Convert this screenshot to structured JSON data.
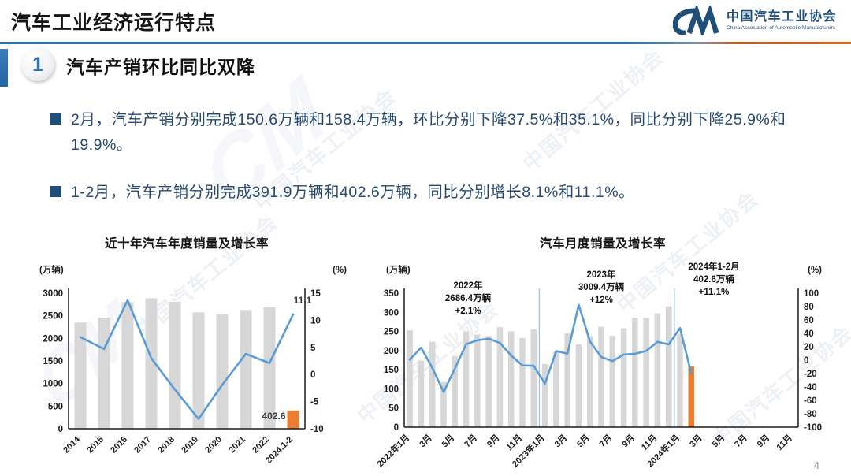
{
  "slide": {
    "title": "汽车工业经济运行特点",
    "page_number": "4",
    "watermark_text": "中国汽车工业协会",
    "watermark_monogram": "CM"
  },
  "logo": {
    "monogram": "CM",
    "name_cn": "中国汽车工业协会",
    "name_en": "China Association of Automobile Manufacturers"
  },
  "section": {
    "number": "1",
    "title": "汽车产销环比同比双降"
  },
  "bullets": [
    "2月，汽车产销分别完成150.6万辆和158.4万辆，环比分别下降37.5%和35.1%，同比分别下降25.9%和19.9%。",
    "1-2月，汽车产销分别完成391.9万辆和402.6万辆，同比分别增长8.1%和11.1%。"
  ],
  "colors": {
    "accent_blue": "#2E75B6",
    "navy_text": "#1F4E79",
    "bar_gray": "#D7D7D7",
    "bar_orange": "#ED7D31",
    "line_blue": "#5B9BD5",
    "separator_blue": "#9DC3E6",
    "divider_orange": "#E2660E"
  },
  "chart_data": [
    {
      "id": "annual",
      "type": "bar+line",
      "title": "近十年汽车年度销量及增长率",
      "left_axis_label": "(万辆)",
      "right_axis_label": "(%)",
      "left_axis": {
        "min": 0,
        "max": 3000,
        "step": 500
      },
      "right_axis": {
        "min": -10,
        "max": 15,
        "step": 5
      },
      "categories": [
        "2014",
        "2015",
        "2016",
        "2017",
        "2018",
        "2019",
        "2020",
        "2021",
        "2022",
        "2024.1-2"
      ],
      "series": [
        {
          "name": "销量(万辆)",
          "type": "bar",
          "values": [
            2349.2,
            2459.8,
            2802.8,
            2887.9,
            2808.1,
            2576.9,
            2531.1,
            2627.5,
            2686.4,
            402.6
          ]
        },
        {
          "name": "增长率(%)",
          "type": "line",
          "values": [
            6.9,
            4.7,
            13.7,
            3.0,
            -2.8,
            -8.2,
            -1.9,
            3.8,
            2.1,
            11.1
          ]
        }
      ],
      "orange_bar_index": 9,
      "value_labels": {
        "line_end": "11.1",
        "last_bar": "402.6"
      },
      "grid": false,
      "legend": false
    },
    {
      "id": "monthly",
      "type": "bar+line",
      "title": "汽车月度销量及增长率",
      "left_axis_label": "(万辆)",
      "right_axis_label": "(%)",
      "left_axis": {
        "min": 0,
        "max": 350,
        "step": 50
      },
      "right_axis": {
        "min": -100,
        "max": 100,
        "step": 20
      },
      "x_tick_labels": [
        "2022年1月",
        "3月",
        "5月",
        "7月",
        "9月",
        "11月",
        "2023年1月",
        "3月",
        "5月",
        "7月",
        "9月",
        "11月",
        "2024年1月",
        "3月",
        "5月",
        "7月",
        "9月",
        "11月"
      ],
      "months_total": 35,
      "series": [
        {
          "name": "销量(万辆)",
          "type": "bar",
          "values": [
            253.1,
            173.7,
            223.4,
            118.1,
            186.2,
            250.2,
            242.0,
            238.3,
            261.0,
            250.5,
            232.8,
            255.6,
            164.9,
            197.6,
            245.1,
            215.9,
            238.2,
            262.2,
            238.7,
            258.2,
            285.8,
            285.3,
            297.0,
            315.6,
            243.9,
            158.4
          ]
        },
        {
          "name": "增长率(%)",
          "type": "line",
          "values": [
            0.9,
            18.7,
            -11.7,
            -47.6,
            -12.6,
            23.8,
            29.7,
            32.1,
            25.7,
            6.9,
            -7.9,
            -8.4,
            -35.0,
            13.5,
            9.7,
            82.7,
            27.9,
            4.8,
            -1.4,
            8.4,
            9.5,
            13.8,
            27.4,
            23.5,
            47.9,
            -19.9
          ]
        }
      ],
      "orange_bar_index": 25,
      "separators_at": [
        12,
        24
      ],
      "annotations": [
        {
          "lines": [
            "2022年",
            "2686.4万辆",
            "+2.1%"
          ]
        },
        {
          "lines": [
            "2023年",
            "3009.4万辆",
            "+12%"
          ]
        },
        {
          "lines": [
            "2024年1-2月",
            "402.6万辆",
            "+11.1%"
          ]
        }
      ],
      "grid": false,
      "legend": false
    }
  ]
}
